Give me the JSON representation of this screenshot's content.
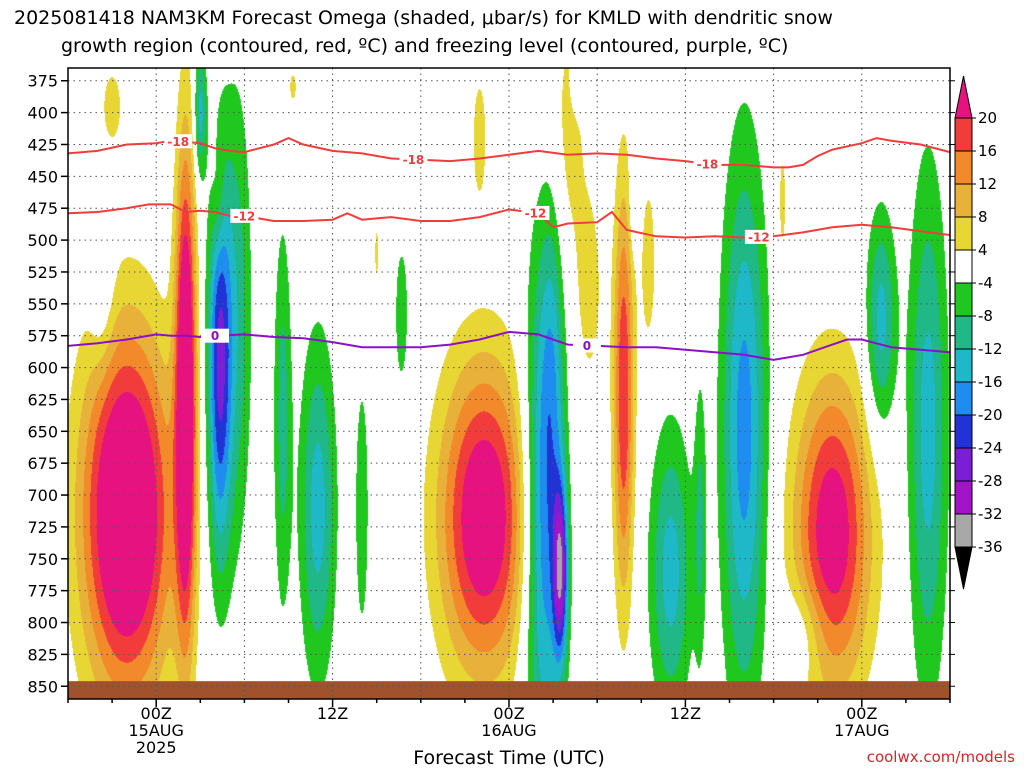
{
  "title": {
    "line1": "2025081418 NAM3KM Forecast Omega (shaded, μbar/s) for KMLD with dendritic snow",
    "line2": "growth region (contoured, red, ºC) and freezing level (contoured, purple, ºC)"
  },
  "credit": "coolwx.com/models",
  "chart_data": {
    "type": "heatmap",
    "xlabel": "Forecast Time (UTC)",
    "ylabel": "",
    "x_range_hours": [
      -6,
      54
    ],
    "y_range_hPa": [
      365,
      860
    ],
    "y_scale": "inverted",
    "grid": true,
    "x_ticks": [
      {
        "hour": 0,
        "lines": [
          "00Z",
          "15AUG",
          "2025"
        ]
      },
      {
        "hour": 12,
        "lines": [
          "12Z"
        ]
      },
      {
        "hour": 24,
        "lines": [
          "00Z",
          "16AUG"
        ]
      },
      {
        "hour": 36,
        "lines": [
          "12Z"
        ]
      },
      {
        "hour": 48,
        "lines": [
          "00Z",
          "17AUG"
        ]
      }
    ],
    "y_ticks": [
      375,
      400,
      425,
      450,
      475,
      500,
      525,
      550,
      575,
      600,
      625,
      650,
      675,
      700,
      725,
      750,
      775,
      800,
      825,
      850
    ],
    "colorbar": {
      "labels": [
        "20",
        "16",
        "12",
        "8",
        "4",
        "-4",
        "-8",
        "-12",
        "-16",
        "-20",
        "-24",
        "-28",
        "-32",
        "-36"
      ],
      "levels": [
        {
          "min": 20,
          "max": null,
          "color": "#e6127f"
        },
        {
          "min": 16,
          "max": 20,
          "color": "#f23c3c"
        },
        {
          "min": 12,
          "max": 16,
          "color": "#f28a2b"
        },
        {
          "min": 8,
          "max": 12,
          "color": "#e8b23a"
        },
        {
          "min": 4,
          "max": 8,
          "color": "#e8d634"
        },
        {
          "min": -4,
          "max": 4,
          "color": "#ffffff"
        },
        {
          "min": -8,
          "max": -4,
          "color": "#1fc71f"
        },
        {
          "min": -12,
          "max": -8,
          "color": "#1fb886"
        },
        {
          "min": -16,
          "max": -12,
          "color": "#1fb8c8"
        },
        {
          "min": -20,
          "max": -16,
          "color": "#1f8cf0"
        },
        {
          "min": -24,
          "max": -20,
          "color": "#2233d6"
        },
        {
          "min": -28,
          "max": -24,
          "color": "#7a1fd6"
        },
        {
          "min": -32,
          "max": -28,
          "color": "#a314c8"
        },
        {
          "min": -36,
          "max": -32,
          "color": "#a8a8a8"
        },
        {
          "min": null,
          "max": -36,
          "color": "#000000"
        }
      ]
    },
    "isotherms": [
      {
        "label": "-18",
        "color": "#f03c3c",
        "points": [
          [
            -6,
            432
          ],
          [
            -4,
            430
          ],
          [
            -2,
            425
          ],
          [
            0,
            424
          ],
          [
            1,
            422
          ],
          [
            2,
            423
          ],
          [
            3,
            424
          ],
          [
            4,
            428
          ],
          [
            5,
            430
          ],
          [
            6,
            431
          ],
          [
            8,
            425
          ],
          [
            9,
            420
          ],
          [
            10,
            425
          ],
          [
            12,
            430
          ],
          [
            14,
            432
          ],
          [
            16,
            436
          ],
          [
            18,
            437
          ],
          [
            20,
            438
          ],
          [
            22,
            436
          ],
          [
            24,
            433
          ],
          [
            26,
            430
          ],
          [
            28,
            433
          ],
          [
            30,
            432
          ],
          [
            32,
            433
          ],
          [
            34,
            436
          ],
          [
            36,
            438
          ],
          [
            38,
            441
          ],
          [
            40,
            441
          ],
          [
            42,
            443
          ],
          [
            43,
            443
          ],
          [
            44,
            441
          ],
          [
            45,
            434
          ],
          [
            46,
            429
          ],
          [
            48,
            424
          ],
          [
            49,
            420
          ],
          [
            50,
            422
          ],
          [
            52,
            425
          ],
          [
            54,
            431
          ]
        ],
        "label_hours": [
          1.5,
          17.5,
          37.5
        ]
      },
      {
        "label": "-12",
        "color": "#f03c3c",
        "points": [
          [
            -6,
            479
          ],
          [
            -4,
            478
          ],
          [
            -2,
            475
          ],
          [
            -0.5,
            472
          ],
          [
            1,
            472
          ],
          [
            2,
            478
          ],
          [
            3,
            477
          ],
          [
            4,
            478
          ],
          [
            5,
            481
          ],
          [
            6,
            481
          ],
          [
            8,
            485
          ],
          [
            10,
            485
          ],
          [
            12,
            484
          ],
          [
            13,
            479
          ],
          [
            14,
            484
          ],
          [
            16,
            482
          ],
          [
            18,
            485
          ],
          [
            20,
            485
          ],
          [
            22,
            482
          ],
          [
            24,
            476
          ],
          [
            26,
            479
          ],
          [
            27,
            490
          ],
          [
            28,
            487
          ],
          [
            30,
            486
          ],
          [
            31,
            478
          ],
          [
            32,
            492
          ],
          [
            34,
            497
          ],
          [
            36,
            498
          ],
          [
            38,
            497
          ],
          [
            40,
            498
          ],
          [
            42,
            497
          ],
          [
            44,
            494
          ],
          [
            46,
            490
          ],
          [
            48,
            488
          ],
          [
            50,
            490
          ],
          [
            52,
            493
          ],
          [
            54,
            496
          ]
        ],
        "label_hours": [
          6,
          25.8,
          41
        ]
      },
      {
        "label": "0",
        "color": "#8c10c8",
        "points": [
          [
            -6,
            583
          ],
          [
            -4,
            581
          ],
          [
            -2,
            578
          ],
          [
            0,
            574
          ],
          [
            1,
            575
          ],
          [
            2,
            575
          ],
          [
            3,
            576
          ],
          [
            4,
            575
          ],
          [
            6,
            574
          ],
          [
            8,
            576
          ],
          [
            10,
            577
          ],
          [
            12,
            580
          ],
          [
            14,
            584
          ],
          [
            16,
            584
          ],
          [
            18,
            584
          ],
          [
            20,
            582
          ],
          [
            22,
            578
          ],
          [
            24,
            572
          ],
          [
            26,
            574
          ],
          [
            28,
            582
          ],
          [
            30,
            583
          ],
          [
            32,
            584
          ],
          [
            34,
            584
          ],
          [
            36,
            586
          ],
          [
            38,
            588
          ],
          [
            40,
            590
          ],
          [
            42,
            594
          ],
          [
            44,
            590
          ],
          [
            46,
            582
          ],
          [
            47,
            578
          ],
          [
            48,
            578
          ],
          [
            50,
            584
          ],
          [
            52,
            586
          ],
          [
            54,
            588
          ]
        ],
        "label_hours": [
          4,
          29.3
        ]
      }
    ],
    "omega_features": [
      {
        "hour": -2,
        "p": 715,
        "dh": 3.0,
        "dp": 140,
        "v": 32
      },
      {
        "hour": -3.7,
        "p": 540,
        "dh": 0.8,
        "dp": 60,
        "v": -6
      },
      {
        "hour": -3,
        "p": 395,
        "dh": 0.8,
        "dp": 35,
        "v": 6
      },
      {
        "hour": 2,
        "p": 620,
        "dh": 0.7,
        "dp": 190,
        "v": 30
      },
      {
        "hour": 3,
        "p": 400,
        "dh": 0.4,
        "dp": 50,
        "v": -14
      },
      {
        "hour": 4.3,
        "p": 600,
        "dh": 0.8,
        "dp": 150,
        "v": -24
      },
      {
        "hour": 4.2,
        "p": 470,
        "dh": 0.5,
        "dp": 50,
        "v": 6
      },
      {
        "hour": 5.5,
        "p": 560,
        "dh": 1.0,
        "dp": 180,
        "v": -10
      },
      {
        "hour": 8.6,
        "p": 640,
        "dh": 0.6,
        "dp": 150,
        "v": -10
      },
      {
        "hour": 9.3,
        "p": 380,
        "dh": 0.3,
        "dp": 15,
        "v": 6
      },
      {
        "hour": 11,
        "p": 710,
        "dh": 1.2,
        "dp": 130,
        "v": -14
      },
      {
        "hour": 14,
        "p": 710,
        "dh": 0.6,
        "dp": 130,
        "v": -6
      },
      {
        "hour": 16.7,
        "p": 560,
        "dh": 0.6,
        "dp": 75,
        "v": -6
      },
      {
        "hour": 15,
        "p": 510,
        "dh": 0.15,
        "dp": 25,
        "v": 6
      },
      {
        "hour": 22,
        "p": 420,
        "dh": 0.6,
        "dp": 60,
        "v": 6
      },
      {
        "hour": 22.3,
        "p": 718,
        "dh": 3.0,
        "dp": 120,
        "v": 26
      },
      {
        "hour": 26.3,
        "p": 720,
        "dh": 1.3,
        "dp": 200,
        "v": -20
      },
      {
        "hour": 27.5,
        "p": 760,
        "dh": 0.5,
        "dp": 70,
        "v": -26
      },
      {
        "hour": 28,
        "p": 420,
        "dh": 1.3,
        "dp": 110,
        "v": 6
      },
      {
        "hour": 27,
        "p": 600,
        "dh": 0.8,
        "dp": 150,
        "v": -8
      },
      {
        "hour": 29.5,
        "p": 540,
        "dh": 0.9,
        "dp": 80,
        "v": 6
      },
      {
        "hour": 28.8,
        "p": 380,
        "dh": 0.5,
        "dp": 20,
        "v": -6
      },
      {
        "hour": 31.8,
        "p": 620,
        "dh": 0.7,
        "dp": 160,
        "v": 20
      },
      {
        "hour": 33.5,
        "p": 520,
        "dh": 0.6,
        "dp": 80,
        "v": 6
      },
      {
        "hour": 32.5,
        "p": 470,
        "dh": 0.3,
        "dp": 40,
        "v": -6
      },
      {
        "hour": 35,
        "p": 760,
        "dh": 1.4,
        "dp": 110,
        "v": -14
      },
      {
        "hour": 37,
        "p": 720,
        "dh": 0.4,
        "dp": 110,
        "v": -8
      },
      {
        "hour": 40,
        "p": 650,
        "dh": 1.5,
        "dp": 210,
        "v": -18
      },
      {
        "hour": 42.6,
        "p": 470,
        "dh": 0.3,
        "dp": 50,
        "v": 6
      },
      {
        "hour": 46,
        "p": 730,
        "dh": 2.6,
        "dp": 120,
        "v": 24
      },
      {
        "hour": 49.3,
        "p": 565,
        "dh": 1.0,
        "dp": 85,
        "v": -14
      },
      {
        "hour": 52.5,
        "p": 650,
        "dh": 1.3,
        "dp": 200,
        "v": -14
      },
      {
        "hour": 44,
        "p": 808,
        "dh": 1.5,
        "dp": 40,
        "v": -6
      }
    ],
    "ground": {
      "p_top": 846,
      "color": "#a0522d"
    }
  }
}
